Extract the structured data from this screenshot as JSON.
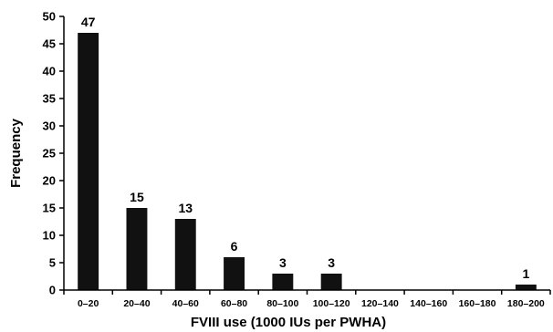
{
  "chart_data": {
    "type": "bar",
    "title": "",
    "xlabel": "FVIII use (1000 IUs per PWHA)",
    "ylabel": "Frequency",
    "categories": [
      "0–20",
      "20–40",
      "40–60",
      "60–80",
      "80–100",
      "100–120",
      "120–140",
      "140–160",
      "160–180",
      "180–200"
    ],
    "values": [
      47,
      15,
      13,
      6,
      3,
      3,
      0,
      0,
      0,
      1
    ],
    "data_labels": [
      "47",
      "15",
      "13",
      "6",
      "3",
      "3",
      "",
      "",
      "",
      "1"
    ],
    "ylim": [
      0,
      50
    ],
    "yticks": [
      0,
      5,
      10,
      15,
      20,
      25,
      30,
      35,
      40,
      45,
      50
    ],
    "grid": false,
    "legend": "none",
    "bar_color": "#111111"
  }
}
